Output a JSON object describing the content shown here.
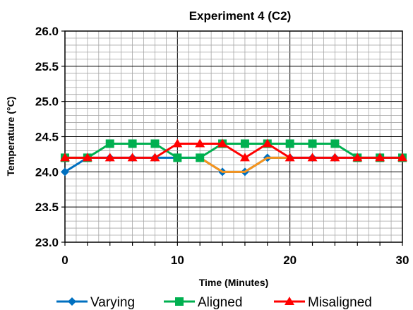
{
  "chart_data": {
    "type": "line",
    "title": "Experiment 4 (C2)",
    "xlabel": "Time (Minutes)",
    "ylabel": "Temperature (°C)",
    "xlim": [
      0,
      30
    ],
    "ylim": [
      23.0,
      26.0
    ],
    "x_ticks": [
      0,
      10,
      20,
      30
    ],
    "y_ticks": [
      23.0,
      23.5,
      24.0,
      24.5,
      25.0,
      25.5,
      26.0
    ],
    "x_tick_labels": [
      "0",
      "10",
      "20",
      "30"
    ],
    "y_tick_labels": [
      "23.0",
      "23.5",
      "24.0",
      "24.5",
      "25.0",
      "25.5",
      "26.0"
    ],
    "grid": true,
    "legend_position": "bottom",
    "series": [
      {
        "name": "Varying",
        "color": "#0070C0",
        "marker": "diamond",
        "x": [
          0,
          2,
          4,
          6,
          8,
          10,
          12,
          14,
          16,
          18,
          20,
          22,
          24,
          26,
          28,
          30
        ],
        "y": [
          24.0,
          24.2,
          24.2,
          24.2,
          24.2,
          24.2,
          24.2,
          24.0,
          24.0,
          24.2,
          24.2,
          24.2,
          24.2,
          24.2,
          24.2,
          24.2
        ]
      },
      {
        "name": "",
        "color": "#F7941D",
        "marker": "none",
        "x": [
          12,
          14,
          16,
          18,
          20
        ],
        "y": [
          24.2,
          24.0,
          24.0,
          24.2,
          24.2
        ]
      },
      {
        "name": "Aligned",
        "color": "#00B050",
        "marker": "square",
        "x": [
          0,
          2,
          4,
          6,
          8,
          10,
          12,
          14,
          16,
          18,
          20,
          22,
          24,
          26,
          28,
          30
        ],
        "y": [
          24.2,
          24.2,
          24.4,
          24.4,
          24.4,
          24.2,
          24.2,
          24.4,
          24.4,
          24.4,
          24.4,
          24.4,
          24.4,
          24.2,
          24.2,
          24.2
        ]
      },
      {
        "name": "Misaligned",
        "color": "#FF0000",
        "marker": "triangle",
        "x": [
          0,
          2,
          4,
          6,
          8,
          10,
          12,
          14,
          16,
          18,
          20,
          22,
          24,
          26,
          28,
          30
        ],
        "y": [
          24.2,
          24.2,
          24.2,
          24.2,
          24.2,
          24.4,
          24.4,
          24.4,
          24.2,
          24.4,
          24.2,
          24.2,
          24.2,
          24.2,
          24.2,
          24.2
        ]
      }
    ]
  }
}
